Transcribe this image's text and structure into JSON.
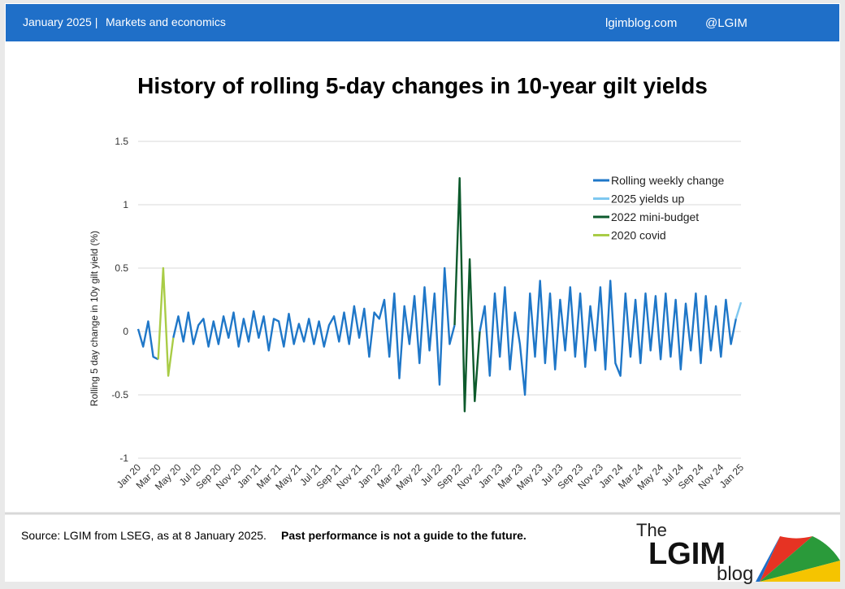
{
  "header": {
    "date": "January 2025 |",
    "section": "Markets and economics",
    "site": "lgimblog.com",
    "handle": "@LGIM"
  },
  "footer": {
    "source": "Source: LGIM  from LSEG, as at 8 January 2025.",
    "disclaimer": "Past performance is not a guide to the future."
  },
  "logo": {
    "the": "The",
    "name": "LGIM",
    "blog": "blog"
  },
  "chart_data": {
    "type": "line",
    "title": "History of rolling 5-day changes in 10-year gilt yields",
    "y_label": "Rolling 5 day change in 10y gilt yield (%)",
    "categories": [
      "Jan 20",
      null,
      null,
      null,
      "Mar 20",
      null,
      null,
      null,
      "May 20",
      null,
      null,
      null,
      "Jul 20",
      null,
      null,
      null,
      "Sep 20",
      null,
      null,
      null,
      "Nov 20",
      null,
      null,
      null,
      "Jan 21",
      null,
      null,
      null,
      "Mar 21",
      null,
      null,
      null,
      "May 21",
      null,
      null,
      null,
      "Jul 21",
      null,
      null,
      null,
      "Sep 21",
      null,
      null,
      null,
      "Nov 21",
      null,
      null,
      null,
      "Jan 22",
      null,
      null,
      null,
      "Mar 22",
      null,
      null,
      null,
      "May 22",
      null,
      null,
      null,
      "Jul 22",
      null,
      null,
      null,
      "Sep 22",
      null,
      null,
      null,
      "Nov 22",
      null,
      null,
      null,
      "Jan 23",
      null,
      null,
      null,
      "Mar 23",
      null,
      null,
      null,
      "May 23",
      null,
      null,
      null,
      "Jul 23",
      null,
      null,
      null,
      "Sep 23",
      null,
      null,
      null,
      "Nov 23",
      null,
      null,
      null,
      "Jan 24",
      null,
      null,
      null,
      "Mar 24",
      null,
      null,
      null,
      "May 24",
      null,
      null,
      null,
      "Jul 24",
      null,
      null,
      null,
      "Sep 24",
      null,
      null,
      null,
      "Nov 24",
      null,
      null,
      null,
      "Jan 25"
    ],
    "ylim": [
      -1,
      1.5
    ],
    "yticks": [
      -1,
      -0.5,
      0,
      0.5,
      1,
      1.5
    ],
    "grid": true,
    "legend": "upper right",
    "series": [
      {
        "name": "Rolling weekly change",
        "color": "#1f77c8",
        "values": [
          0.02,
          -0.12,
          0.08,
          -0.2,
          -0.22,
          null,
          null,
          -0.05,
          0.12,
          -0.08,
          0.15,
          -0.1,
          0.05,
          0.1,
          -0.12,
          0.08,
          -0.1,
          0.12,
          -0.05,
          0.15,
          -0.12,
          0.1,
          -0.08,
          0.16,
          -0.05,
          0.12,
          -0.15,
          0.1,
          0.08,
          -0.12,
          0.14,
          -0.1,
          0.06,
          -0.08,
          0.1,
          -0.1,
          0.08,
          -0.12,
          0.05,
          0.12,
          -0.08,
          0.15,
          -0.1,
          0.2,
          -0.05,
          0.18,
          -0.2,
          0.15,
          0.1,
          0.25,
          -0.2,
          0.3,
          -0.37,
          0.2,
          -0.1,
          0.28,
          -0.25,
          0.35,
          -0.15,
          0.3,
          -0.42,
          0.5,
          -0.1,
          0.05,
          null,
          null,
          null,
          null,
          0.0,
          0.2,
          -0.35,
          0.3,
          -0.2,
          0.35,
          -0.3,
          0.15,
          -0.1,
          -0.5,
          0.3,
          -0.2,
          0.4,
          -0.25,
          0.3,
          -0.3,
          0.25,
          -0.15,
          0.35,
          -0.2,
          0.3,
          -0.28,
          0.2,
          -0.15,
          0.35,
          -0.3,
          0.4,
          -0.25,
          -0.35,
          0.3,
          -0.2,
          0.25,
          -0.25,
          0.3,
          -0.15,
          0.28,
          -0.22,
          0.3,
          -0.2,
          0.25,
          -0.3,
          0.22,
          -0.15,
          0.3,
          -0.25,
          0.28,
          -0.15,
          0.2,
          -0.2,
          0.25,
          -0.1,
          0.1,
          null
        ]
      },
      {
        "name": "2025 yields up",
        "color": "#7ec8f0",
        "values": [
          null,
          null,
          null,
          null,
          null,
          null,
          null,
          null,
          null,
          null,
          null,
          null,
          null,
          null,
          null,
          null,
          null,
          null,
          null,
          null,
          null,
          null,
          null,
          null,
          null,
          null,
          null,
          null,
          null,
          null,
          null,
          null,
          null,
          null,
          null,
          null,
          null,
          null,
          null,
          null,
          null,
          null,
          null,
          null,
          null,
          null,
          null,
          null,
          null,
          null,
          null,
          null,
          null,
          null,
          null,
          null,
          null,
          null,
          null,
          null,
          null,
          null,
          null,
          null,
          null,
          null,
          null,
          null,
          null,
          null,
          null,
          null,
          null,
          null,
          null,
          null,
          null,
          null,
          null,
          null,
          null,
          null,
          null,
          null,
          null,
          null,
          null,
          null,
          null,
          null,
          null,
          null,
          null,
          null,
          null,
          null,
          null,
          null,
          null,
          null,
          null,
          null,
          null,
          null,
          null,
          null,
          null,
          null,
          null,
          null,
          null,
          null,
          null,
          null,
          null,
          null,
          null,
          null,
          null,
          0.1,
          0.23
        ]
      },
      {
        "name": "2022 mini-budget",
        "color": "#0d5a2c",
        "values": [
          null,
          null,
          null,
          null,
          null,
          null,
          null,
          null,
          null,
          null,
          null,
          null,
          null,
          null,
          null,
          null,
          null,
          null,
          null,
          null,
          null,
          null,
          null,
          null,
          null,
          null,
          null,
          null,
          null,
          null,
          null,
          null,
          null,
          null,
          null,
          null,
          null,
          null,
          null,
          null,
          null,
          null,
          null,
          null,
          null,
          null,
          null,
          null,
          null,
          null,
          null,
          null,
          null,
          null,
          null,
          null,
          null,
          null,
          null,
          null,
          null,
          null,
          null,
          0.05,
          1.21,
          -0.63,
          0.57,
          -0.55,
          0.0,
          null,
          null,
          null,
          null,
          null,
          null,
          null,
          null,
          null,
          null,
          null,
          null,
          null,
          null,
          null,
          null,
          null,
          null,
          null,
          null,
          null,
          null,
          null,
          null,
          null,
          null,
          null,
          null,
          null,
          null,
          null,
          null,
          null,
          null,
          null,
          null,
          null,
          null,
          null,
          null,
          null,
          null,
          null,
          null,
          null,
          null,
          null,
          null,
          null,
          null,
          null,
          null
        ]
      },
      {
        "name": "2020 covid",
        "color": "#a9cc46",
        "values": [
          null,
          null,
          null,
          null,
          -0.22,
          0.5,
          -0.35,
          -0.05,
          null,
          null,
          null,
          null,
          null,
          null,
          null,
          null,
          null,
          null,
          null,
          null,
          null,
          null,
          null,
          null,
          null,
          null,
          null,
          null,
          null,
          null,
          null,
          null,
          null,
          null,
          null,
          null,
          null,
          null,
          null,
          null,
          null,
          null,
          null,
          null,
          null,
          null,
          null,
          null,
          null,
          null,
          null,
          null,
          null,
          null,
          null,
          null,
          null,
          null,
          null,
          null,
          null,
          null,
          null,
          null,
          null,
          null,
          null,
          null,
          null,
          null,
          null,
          null,
          null,
          null,
          null,
          null,
          null,
          null,
          null,
          null,
          null,
          null,
          null,
          null,
          null,
          null,
          null,
          null,
          null,
          null,
          null,
          null,
          null,
          null,
          null,
          null,
          null,
          null,
          null,
          null,
          null,
          null,
          null,
          null,
          null,
          null,
          null,
          null,
          null,
          null,
          null,
          null,
          null,
          null,
          null,
          null,
          null,
          null,
          null,
          null,
          null
        ]
      }
    ]
  }
}
